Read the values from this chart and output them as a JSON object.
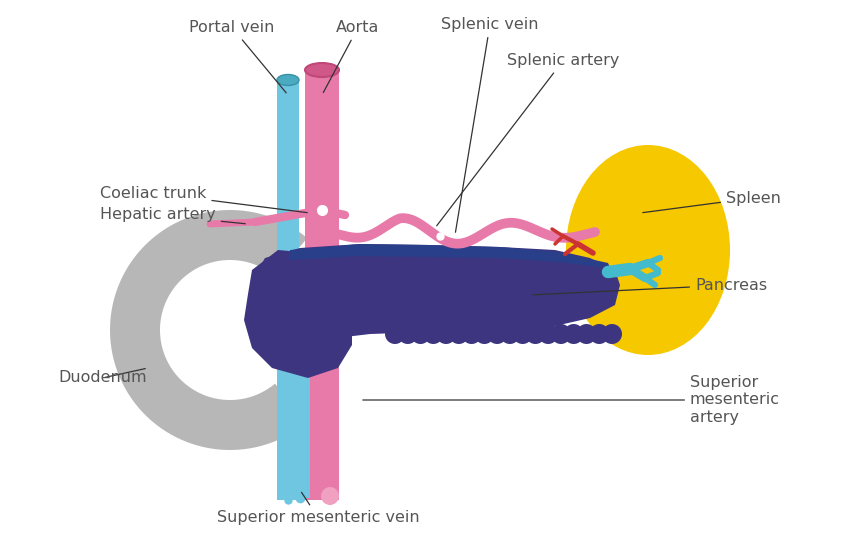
{
  "bg_color": "#ffffff",
  "pancreas_color": "#3d3580",
  "spleen_color": "#f5c800",
  "duodenum_color": "#b0b0b0",
  "portal_vein_color": "#6ec6e0",
  "aorta_color": "#e87aaa",
  "splenic_artery_color": "#e87aaa",
  "sm_vein_color": "#6ec6e0",
  "sm_artery_color": "#e87aaa",
  "red_vessels_color": "#cc3333",
  "teal_vessels_color": "#44bbcc",
  "blue_band_color": "#2a3f8a",
  "text_color": "#555555",
  "labels": {
    "portal_vein": "Portal vein",
    "aorta": "Aorta",
    "splenic_vein": "Splenic vein",
    "splenic_artery": "Splenic artery",
    "coeliac_trunk": "Coeliac trunk",
    "hepatic_artery": "Hepatic artery",
    "spleen": "Spleen",
    "pancreas": "Pancreas",
    "duodenum": "Duodenum",
    "sm_vein": "Superior mesenteric vein",
    "sm_artery": "Superior\nmesenteric\nartery"
  }
}
